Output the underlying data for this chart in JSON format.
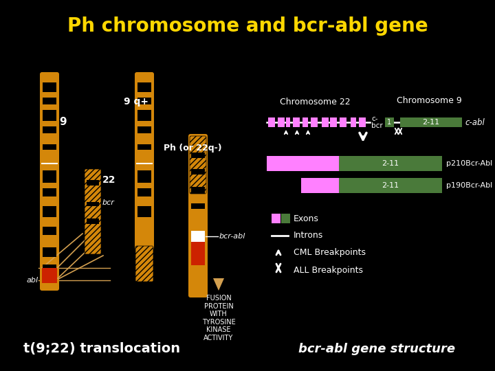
{
  "title": "Ph chromosome and bcr-abl gene",
  "title_color": "#FFD700",
  "bg_color": "#000000",
  "chr22_label": "Chromosome 22",
  "chr9_label": "Chromosome 9",
  "cabl_label": "c-abl",
  "p210_label": "p210Bcr-Abl",
  "p190_label": "p190Bcr-Abl",
  "exons_label": "Exons",
  "introns_label": "Introns",
  "cml_label": "CML Breakpoints",
  "all_label": "ALL Breakpoints",
  "translocation_label": "t(9;22) translocation",
  "gene_structure_label": "bcr-abl gene structure",
  "nine_q_label": "9 q+",
  "ph_label": "Ph (or 22q-)",
  "fusion_label": "FUSION\nPROTEIN\nWITH\nTYROSINE\nKINASE\nACTIVITY",
  "bcr_abl_label": "bcr-abl",
  "bcr_label": "bcr",
  "abl_label": "abl",
  "label_9": "9",
  "label_22": "22",
  "chr_color": "#D4870A",
  "pink_color": "#FF80FF",
  "green_color": "#4A7A3A",
  "white_color": "#FFFFFF",
  "red_color": "#CC2200",
  "tan_color": "#D4A050"
}
